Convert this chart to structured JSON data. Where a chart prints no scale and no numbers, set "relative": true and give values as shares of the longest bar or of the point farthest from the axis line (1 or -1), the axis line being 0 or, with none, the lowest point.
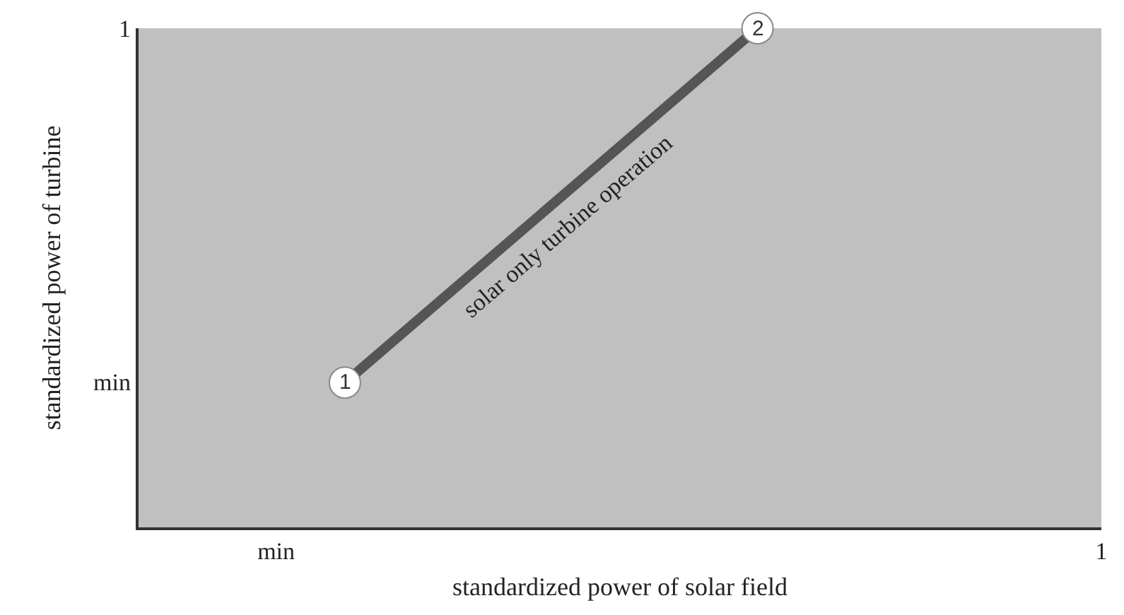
{
  "chart_data": {
    "type": "line",
    "xlabel": "standardized power of solar field",
    "ylabel": "standardized power of turbine",
    "categories": [
      null,
      null,
      "min",
      null,
      null,
      null,
      null,
      null,
      null,
      null,
      null,
      null,
      null,
      null,
      "1"
    ],
    "series": [
      {
        "color": "#555555",
        "values": [
          null,
          null,
          null,
          0.29,
          null,
          null,
          null,
          null,
          null,
          1,
          null,
          null,
          null,
          null,
          null
        ]
      }
    ],
    "relative": true,
    "legend": false,
    "marker": "circle",
    "line_style": "solid",
    "annotations": [
      "1",
      "2",
      "solar only turbine operation",
      "min",
      "1"
    ]
  }
}
